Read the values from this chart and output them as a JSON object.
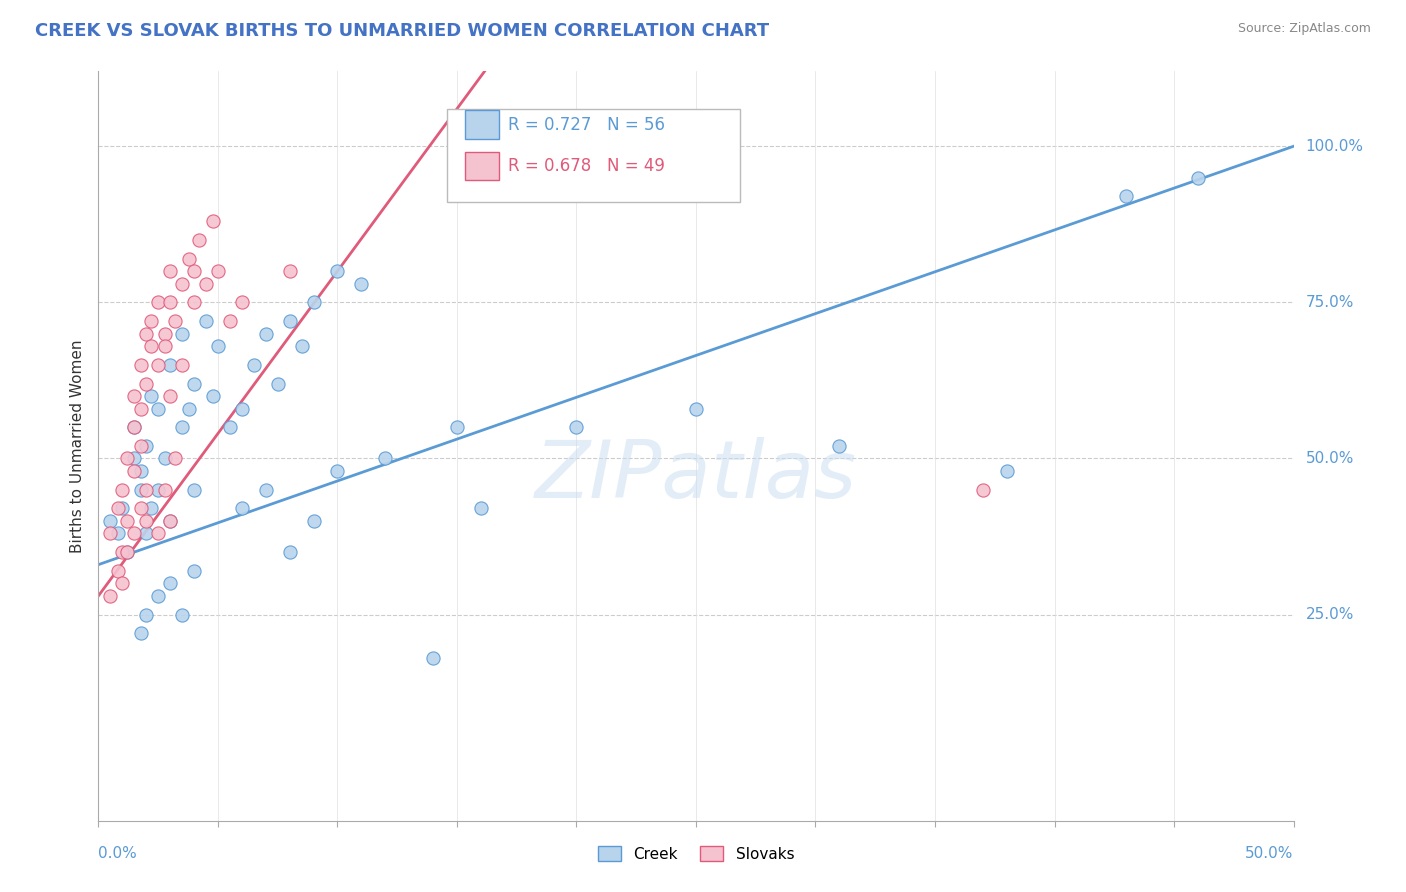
{
  "title": "CREEK VS SLOVAK BIRTHS TO UNMARRIED WOMEN CORRELATION CHART",
  "source": "Source: ZipAtlas.com",
  "ylabel_label": "Births to Unmarried Women",
  "xmin": 0.0,
  "xmax": 0.5,
  "ymin": -0.08,
  "ymax": 1.12,
  "watermark_line1": "ZIP",
  "watermark_line2": "atlas",
  "legend_creek_r": "R = 0.727",
  "legend_creek_n": "N = 56",
  "legend_slovak_r": "R = 0.678",
  "legend_slovak_n": "N = 49",
  "creek_fill_color": "#b8d4ed",
  "slovak_fill_color": "#f5c2d0",
  "creek_edge_color": "#5b9bd5",
  "slovak_edge_color": "#e05a7a",
  "creek_line_color": "#5b9bd5",
  "slovak_line_color": "#e05a7a",
  "y_tick_positions": [
    0.0,
    0.25,
    0.5,
    0.75,
    1.0
  ],
  "y_tick_labels_right": [
    "",
    "25.0%",
    "50.0%",
    "75.0%",
    "100.0%"
  ],
  "x_tick_labels": [
    "0.0%",
    "",
    "",
    "",
    "",
    "50.0%"
  ],
  "creek_scatter": [
    [
      0.005,
      0.4
    ],
    [
      0.008,
      0.38
    ],
    [
      0.01,
      0.42
    ],
    [
      0.012,
      0.35
    ],
    [
      0.015,
      0.55
    ],
    [
      0.015,
      0.5
    ],
    [
      0.018,
      0.48
    ],
    [
      0.018,
      0.45
    ],
    [
      0.02,
      0.52
    ],
    [
      0.02,
      0.38
    ],
    [
      0.022,
      0.6
    ],
    [
      0.022,
      0.42
    ],
    [
      0.025,
      0.58
    ],
    [
      0.025,
      0.45
    ],
    [
      0.028,
      0.5
    ],
    [
      0.03,
      0.65
    ],
    [
      0.03,
      0.4
    ],
    [
      0.035,
      0.7
    ],
    [
      0.035,
      0.55
    ],
    [
      0.038,
      0.58
    ],
    [
      0.04,
      0.62
    ],
    [
      0.04,
      0.45
    ],
    [
      0.045,
      0.72
    ],
    [
      0.048,
      0.6
    ],
    [
      0.05,
      0.68
    ],
    [
      0.055,
      0.55
    ],
    [
      0.06,
      0.58
    ],
    [
      0.065,
      0.65
    ],
    [
      0.07,
      0.7
    ],
    [
      0.075,
      0.62
    ],
    [
      0.08,
      0.72
    ],
    [
      0.085,
      0.68
    ],
    [
      0.09,
      0.75
    ],
    [
      0.1,
      0.8
    ],
    [
      0.11,
      0.78
    ],
    [
      0.018,
      0.22
    ],
    [
      0.02,
      0.25
    ],
    [
      0.025,
      0.28
    ],
    [
      0.03,
      0.3
    ],
    [
      0.035,
      0.25
    ],
    [
      0.04,
      0.32
    ],
    [
      0.06,
      0.42
    ],
    [
      0.07,
      0.45
    ],
    [
      0.08,
      0.35
    ],
    [
      0.09,
      0.4
    ],
    [
      0.1,
      0.48
    ],
    [
      0.12,
      0.5
    ],
    [
      0.14,
      0.18
    ],
    [
      0.15,
      0.55
    ],
    [
      0.16,
      0.42
    ],
    [
      0.2,
      0.55
    ],
    [
      0.25,
      0.58
    ],
    [
      0.31,
      0.52
    ],
    [
      0.38,
      0.48
    ],
    [
      0.43,
      0.92
    ],
    [
      0.46,
      0.95
    ]
  ],
  "slovak_scatter": [
    [
      0.005,
      0.38
    ],
    [
      0.008,
      0.42
    ],
    [
      0.01,
      0.35
    ],
    [
      0.01,
      0.45
    ],
    [
      0.012,
      0.5
    ],
    [
      0.012,
      0.4
    ],
    [
      0.015,
      0.55
    ],
    [
      0.015,
      0.48
    ],
    [
      0.015,
      0.6
    ],
    [
      0.018,
      0.52
    ],
    [
      0.018,
      0.58
    ],
    [
      0.018,
      0.65
    ],
    [
      0.02,
      0.62
    ],
    [
      0.02,
      0.7
    ],
    [
      0.02,
      0.45
    ],
    [
      0.022,
      0.68
    ],
    [
      0.022,
      0.72
    ],
    [
      0.025,
      0.65
    ],
    [
      0.025,
      0.75
    ],
    [
      0.028,
      0.7
    ],
    [
      0.028,
      0.68
    ],
    [
      0.03,
      0.75
    ],
    [
      0.03,
      0.6
    ],
    [
      0.03,
      0.8
    ],
    [
      0.032,
      0.72
    ],
    [
      0.035,
      0.78
    ],
    [
      0.035,
      0.65
    ],
    [
      0.038,
      0.82
    ],
    [
      0.04,
      0.75
    ],
    [
      0.04,
      0.8
    ],
    [
      0.042,
      0.85
    ],
    [
      0.045,
      0.78
    ],
    [
      0.048,
      0.88
    ],
    [
      0.05,
      0.8
    ],
    [
      0.055,
      0.72
    ],
    [
      0.005,
      0.28
    ],
    [
      0.008,
      0.32
    ],
    [
      0.01,
      0.3
    ],
    [
      0.012,
      0.35
    ],
    [
      0.015,
      0.38
    ],
    [
      0.018,
      0.42
    ],
    [
      0.02,
      0.4
    ],
    [
      0.025,
      0.38
    ],
    [
      0.028,
      0.45
    ],
    [
      0.03,
      0.4
    ],
    [
      0.032,
      0.5
    ],
    [
      0.06,
      0.75
    ],
    [
      0.08,
      0.8
    ],
    [
      0.37,
      0.45
    ]
  ]
}
